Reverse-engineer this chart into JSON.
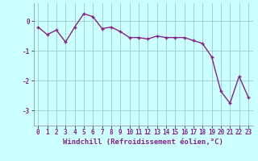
{
  "x": [
    0,
    1,
    2,
    3,
    4,
    5,
    6,
    7,
    8,
    9,
    10,
    11,
    12,
    13,
    14,
    15,
    16,
    17,
    18,
    19,
    20,
    21,
    22,
    23
  ],
  "y": [
    -0.2,
    -0.45,
    -0.3,
    -0.7,
    -0.2,
    0.25,
    0.15,
    -0.25,
    -0.2,
    -0.35,
    -0.55,
    -0.55,
    -0.6,
    -0.5,
    -0.55,
    -0.55,
    -0.55,
    -0.65,
    -0.75,
    -1.2,
    -2.35,
    -2.75,
    -1.85,
    -2.55
  ],
  "line_color": "#882288",
  "marker": "+",
  "bg_color": "#ccffff",
  "grid_color": "#99cccc",
  "xlabel": "Windchill (Refroidissement éolien,°C)",
  "xlim": [
    -0.5,
    23.5
  ],
  "ylim": [
    -3.5,
    0.6
  ],
  "yticks": [
    0,
    -1,
    -2,
    -3
  ],
  "xticks": [
    0,
    1,
    2,
    3,
    4,
    5,
    6,
    7,
    8,
    9,
    10,
    11,
    12,
    13,
    14,
    15,
    16,
    17,
    18,
    19,
    20,
    21,
    22,
    23
  ],
  "tick_fontsize": 5.5,
  "xlabel_fontsize": 6.5,
  "line_width": 1.0,
  "marker_size": 3.5,
  "marker_edge_width": 1.0
}
